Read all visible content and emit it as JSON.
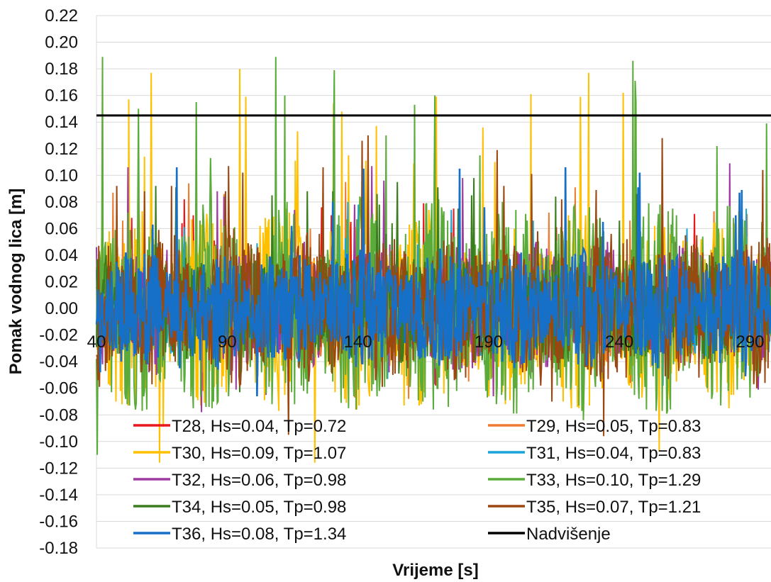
{
  "chart_data": {
    "type": "line",
    "title": "",
    "xlabel": "Vrijeme [s]",
    "ylabel": "Pomak vodnog lica [m]",
    "xlim": [
      40,
      298
    ],
    "ylim": [
      -0.18,
      0.22
    ],
    "xticks": [
      40,
      90,
      140,
      190,
      240,
      290
    ],
    "yticks": [
      0.22,
      0.2,
      0.18,
      0.16,
      0.14,
      0.12,
      0.1,
      0.08,
      0.06,
      0.04,
      0.02,
      0.0,
      -0.02,
      -0.04,
      -0.06,
      -0.08,
      -0.1,
      -0.12,
      -0.14,
      -0.16,
      -0.18
    ],
    "ytick_labels": [
      "0.22",
      "0.20",
      "0.18",
      "0.16",
      "0.14",
      "0.12",
      "0.10",
      "0.08",
      "0.06",
      "0.04",
      "0.02",
      "0.00",
      "-0.02",
      "-0.04",
      "-0.06",
      "-0.08",
      "-0.10",
      "-0.12",
      "-0.14",
      "-0.16",
      "-0.18"
    ],
    "grid": "horizontal",
    "legend_position": "bottom",
    "series": [
      {
        "name": "T28, Hs=0.04, Tp=0.72",
        "color": "#e8191c",
        "amplitude": 0.03,
        "x": [],
        "values": []
      },
      {
        "name": "T29, Hs=0.05, Tp=0.83",
        "color": "#ed7d31",
        "amplitude": 0.035,
        "x": [],
        "values": []
      },
      {
        "name": "T30, Hs=0.09, Tp=1.07",
        "color": "#ffc000",
        "amplitude": 0.065,
        "x": [],
        "values": []
      },
      {
        "name": "T31, Hs=0.04, Tp=0.83",
        "color": "#1aa3d9",
        "amplitude": 0.03,
        "x": [],
        "values": []
      },
      {
        "name": "T32, Hs=0.06, Tp=0.98",
        "color": "#9e3aa0",
        "amplitude": 0.042,
        "x": [],
        "values": []
      },
      {
        "name": "T33, Hs=0.10, Tp=1.29",
        "color": "#5aab3a",
        "amplitude": 0.07,
        "x": [],
        "values": []
      },
      {
        "name": "T34, Hs=0.05, Tp=0.98",
        "color": "#3a7d1e",
        "amplitude": 0.035,
        "x": [],
        "values": []
      },
      {
        "name": "T35, Hs=0.07, Tp=1.21",
        "color": "#9c4610",
        "amplitude": 0.05,
        "x": [],
        "values": []
      },
      {
        "name": "T36, Hs=0.08, Tp=1.34",
        "color": "#1670c8",
        "amplitude": 0.038,
        "x": [],
        "values": []
      }
    ],
    "reference_line": {
      "name": "Nadvišenje",
      "value": 0.145,
      "color": "#000000"
    }
  }
}
